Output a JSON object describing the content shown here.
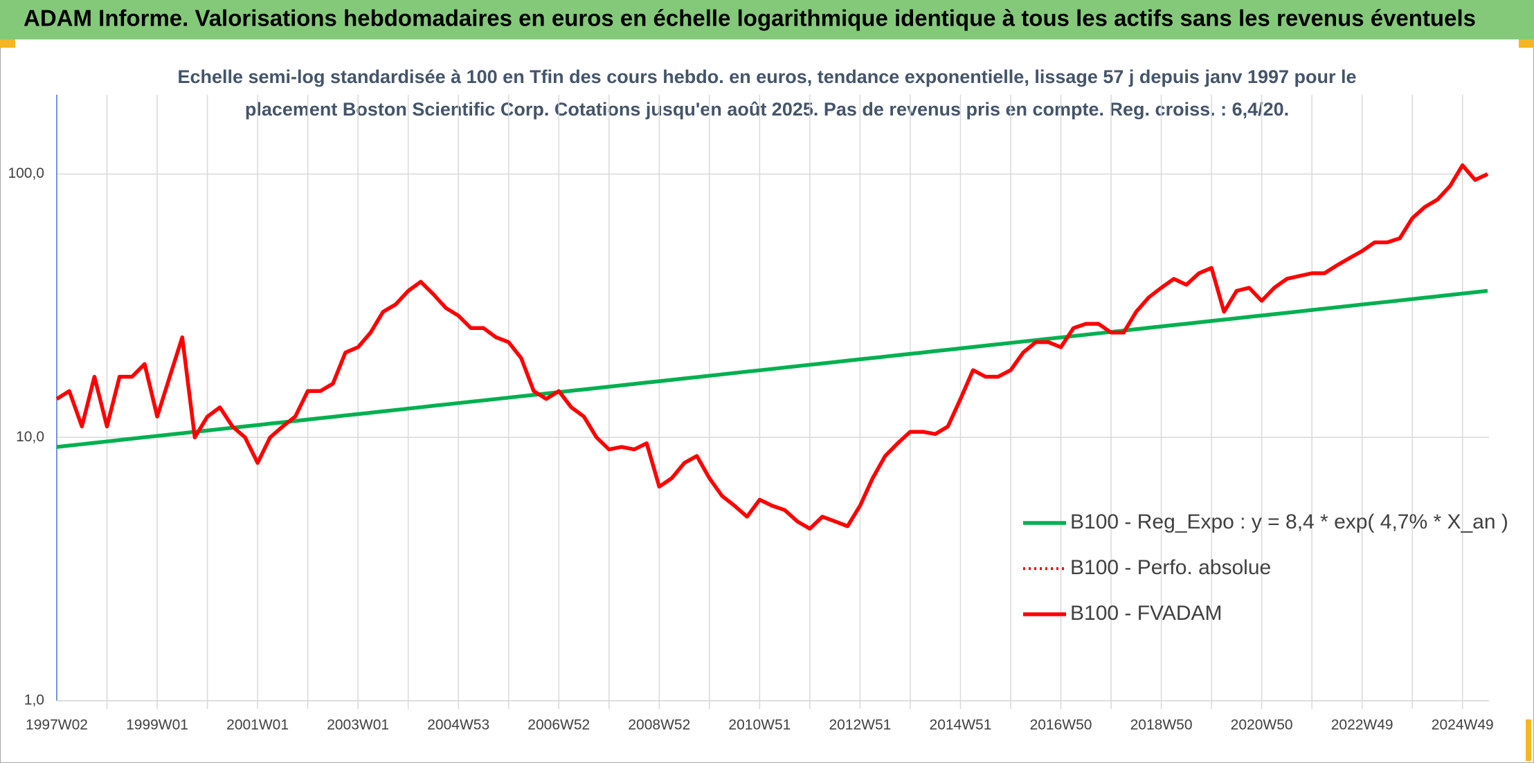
{
  "header": {
    "title": "ADAM Informe. Valorisations hebdomadaires en euros en échelle logarithmique identique à tous les actifs sans les revenus éventuels"
  },
  "chart_data": {
    "type": "line",
    "subtitle": [
      "Echelle semi-log standardisée à 100 en Tfin des cours hebdo. en euros, tendance exponentielle, lissage 57 j depuis janv 1997 pour le",
      "placement Boston Scientific Corp. Cotations jusqu'en août 2025. Pas de revenus pris en compte. Reg. croiss. : 6,4/20."
    ],
    "categories": [
      "1997W02",
      null,
      null,
      null,
      null,
      null,
      null,
      null,
      "1999W01",
      null,
      null,
      null,
      null,
      null,
      null,
      null,
      "2001W01",
      null,
      null,
      null,
      null,
      null,
      null,
      null,
      "2003W01",
      null,
      null,
      null,
      null,
      null,
      null,
      null,
      "2004W53",
      null,
      null,
      null,
      null,
      null,
      null,
      null,
      "2006W52",
      null,
      null,
      null,
      null,
      null,
      null,
      null,
      "2008W52",
      null,
      null,
      null,
      null,
      null,
      null,
      null,
      "2010W51",
      null,
      null,
      null,
      null,
      null,
      null,
      null,
      "2012W51",
      null,
      null,
      null,
      null,
      null,
      null,
      null,
      "2014W51",
      null,
      null,
      null,
      null,
      null,
      null,
      null,
      "2016W50",
      null,
      null,
      null,
      null,
      null,
      null,
      null,
      "2018W50",
      null,
      null,
      null,
      null,
      null,
      null,
      null,
      "2020W50",
      null,
      null,
      null,
      null,
      null,
      null,
      null,
      "2022W49",
      null,
      null,
      null,
      null,
      null,
      null,
      null,
      "2024W49",
      null,
      null
    ],
    "series": [
      {
        "name": "B100 - Reg_Expo : y = 8,4 * exp( 4,7% *  X_an )",
        "color": "#00b050",
        "style": "solid",
        "values": [
          9.2,
          9.31,
          9.42,
          9.54,
          9.65,
          9.77,
          9.89,
          10.01,
          10.13,
          10.25,
          10.37,
          10.5,
          10.62,
          10.75,
          10.88,
          11.01,
          11.14,
          11.28,
          11.41,
          11.55,
          11.69,
          11.83,
          11.97,
          12.12,
          12.26,
          12.41,
          12.56,
          12.71,
          12.86,
          13.02,
          13.18,
          13.34,
          13.5,
          13.66,
          13.82,
          13.99,
          14.16,
          14.33,
          14.5,
          14.67,
          14.85,
          15.03,
          15.21,
          15.39,
          15.58,
          15.77,
          15.96,
          16.15,
          16.34,
          16.54,
          16.74,
          16.94,
          17.14,
          17.35,
          17.56,
          17.77,
          17.98,
          18.2,
          18.42,
          18.64,
          18.87,
          19.09,
          19.32,
          19.56,
          19.79,
          20.03,
          20.27,
          20.52,
          20.76,
          21.01,
          21.27,
          21.52,
          21.78,
          22.04,
          22.31,
          22.58,
          22.85,
          23.13,
          23.4,
          23.69,
          23.97,
          24.26,
          24.55,
          24.85,
          25.15,
          25.45,
          25.76,
          26.07,
          26.38,
          26.7,
          27.02,
          27.35,
          27.67,
          28.01,
          28.34,
          28.69,
          29.03,
          29.38,
          29.73,
          30.09,
          30.46,
          30.82,
          31.19,
          31.57,
          31.95,
          32.34,
          32.73,
          33.12,
          33.52,
          33.92,
          34.33,
          34.75,
          35.16,
          35.59,
          36.01
        ]
      },
      {
        "name": "B100 - Perfo. absolue",
        "color": "#ff0000",
        "style": "dotted",
        "values": [
          14,
          15,
          11,
          17,
          11,
          17,
          17,
          19,
          12,
          17,
          24,
          10,
          12,
          13,
          11,
          10,
          8,
          10,
          11,
          12,
          15,
          15,
          16,
          21,
          22,
          25,
          30,
          32,
          36,
          39,
          35,
          31,
          29,
          26,
          26,
          24,
          23,
          20,
          15,
          14,
          15,
          13,
          12,
          10,
          9,
          9.2,
          9,
          9.5,
          6.5,
          7,
          8,
          8.5,
          7,
          6,
          5.5,
          5,
          5.8,
          5.5,
          5.3,
          4.8,
          4.5,
          5,
          4.8,
          4.6,
          5.5,
          7,
          8.5,
          9.5,
          10.5,
          10.5,
          10.3,
          11,
          14,
          18,
          17,
          17,
          18,
          21,
          23,
          23,
          22,
          26,
          27,
          27,
          25,
          25,
          30,
          34,
          37,
          40,
          38,
          42,
          44,
          30,
          36,
          37,
          33,
          37,
          40,
          41,
          42,
          42,
          45,
          48,
          51,
          55,
          55,
          57,
          68,
          75,
          80,
          90,
          108,
          95,
          100
        ]
      },
      {
        "name": "B100 - FVADAM",
        "color": "#ff0000",
        "style": "solid",
        "values": [
          14,
          15,
          11,
          17,
          11,
          17,
          17,
          19,
          12,
          17,
          24,
          10,
          12,
          13,
          11,
          10,
          8,
          10,
          11,
          12,
          15,
          15,
          16,
          21,
          22,
          25,
          30,
          32,
          36,
          39,
          35,
          31,
          29,
          26,
          26,
          24,
          23,
          20,
          15,
          14,
          15,
          13,
          12,
          10,
          9,
          9.2,
          9,
          9.5,
          6.5,
          7,
          8,
          8.5,
          7,
          6,
          5.5,
          5,
          5.8,
          5.5,
          5.3,
          4.8,
          4.5,
          5,
          4.8,
          4.6,
          5.5,
          7,
          8.5,
          9.5,
          10.5,
          10.5,
          10.3,
          11,
          14,
          18,
          17,
          17,
          18,
          21,
          23,
          23,
          22,
          26,
          27,
          27,
          25,
          25,
          30,
          34,
          37,
          40,
          38,
          42,
          44,
          30,
          36,
          37,
          33,
          37,
          40,
          41,
          42,
          42,
          45,
          48,
          51,
          55,
          55,
          57,
          68,
          75,
          80,
          90,
          108,
          95,
          100
        ]
      }
    ],
    "log_scale": true,
    "ylim": [
      1,
      200
    ],
    "yticks": [
      {
        "value": 1,
        "label": "1,0"
      },
      {
        "value": 10,
        "label": "10,0"
      },
      {
        "value": 100,
        "label": "100,0"
      }
    ],
    "grid": true,
    "legend": "lower right"
  }
}
